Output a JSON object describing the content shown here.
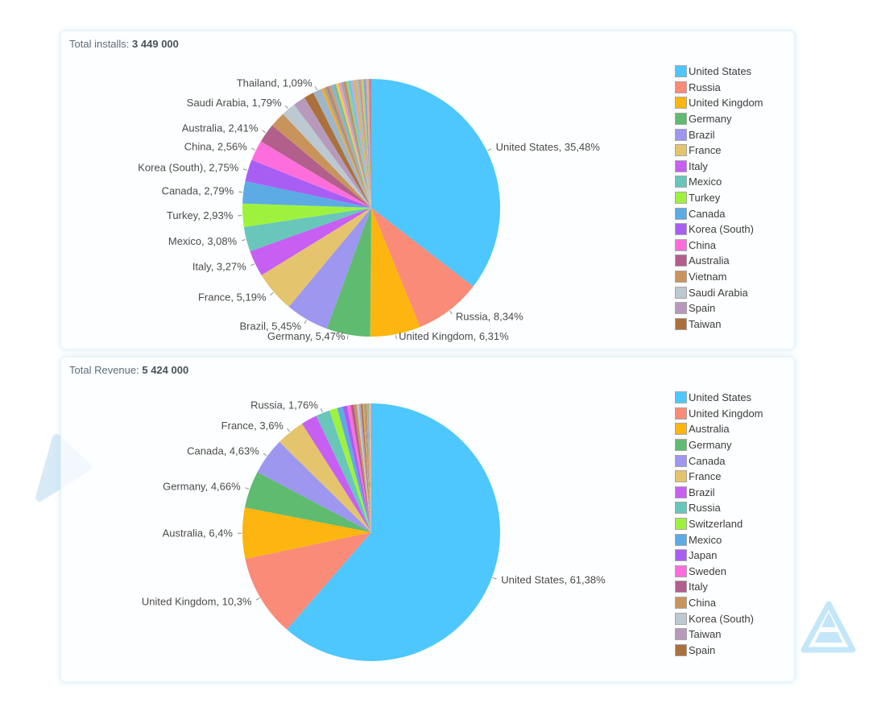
{
  "page": {
    "background": "#ffffff",
    "accent_decor_color": "#d7eaf6"
  },
  "cards": [
    {
      "title_label": "Total installs:",
      "total": "3 449 000"
    },
    {
      "title_label": "Total Revenue:",
      "total": "5 424 000"
    }
  ],
  "filler_palette": [
    "#F2A93B",
    "#ABA773",
    "#B2808F",
    "#C5A06A",
    "#7FB7DC",
    "#84B78A",
    "#E8D25A",
    "#F09AC0",
    "#9AA7B5",
    "#C98B4F",
    "#8FCF9B",
    "#6FC6D8",
    "#C8A6E0",
    "#D9B84A",
    "#A8BCCB",
    "#E09080",
    "#A5D878",
    "#90A0DC",
    "#EBB083",
    "#AB8FA8"
  ],
  "label_text_color": "#4a4a4a",
  "tick_color": "#8f8f8f",
  "chart_data": [
    {
      "type": "pie",
      "title": "Total installs: 3 449 000",
      "total_label": "Total installs:",
      "total_value": "3 449 000",
      "unit": "percent",
      "legend_position": "right",
      "slices": [
        {
          "name": "United States",
          "value": 35.48,
          "color": "#4DC7FD",
          "label": "United States, 35,48%"
        },
        {
          "name": "Russia",
          "value": 8.34,
          "color": "#FA8B78",
          "label": "Russia, 8,34%"
        },
        {
          "name": "United Kingdom",
          "value": 6.31,
          "color": "#FCB60F",
          "label": "United Kingdom, 6,31%"
        },
        {
          "name": "Germany",
          "value": 5.47,
          "color": "#5EBB70",
          "label": "Germany, 5,47%"
        },
        {
          "name": "Brazil",
          "value": 5.45,
          "color": "#9D97EF",
          "label": "Brazil, 5,45%"
        },
        {
          "name": "France",
          "value": 5.19,
          "color": "#E5C46E",
          "label": "France, 5,19%"
        },
        {
          "name": "Italy",
          "value": 3.27,
          "color": "#C75FF3",
          "label": "Italy, 3,27%"
        },
        {
          "name": "Mexico",
          "value": 3.08,
          "color": "#68C6BB",
          "label": "Mexico, 3,08%"
        },
        {
          "name": "Turkey",
          "value": 2.93,
          "color": "#9EF23E",
          "label": "Turkey, 2,93%"
        },
        {
          "name": "Canada",
          "value": 2.79,
          "color": "#5CABE5",
          "label": "Canada, 2,79%"
        },
        {
          "name": "Korea (South)",
          "value": 2.75,
          "color": "#A95EF3",
          "label": "Korea (South), 2,75%"
        },
        {
          "name": "China",
          "value": 2.56,
          "color": "#FD6EDC",
          "label": "China, 2,56%"
        },
        {
          "name": "Australia",
          "value": 2.41,
          "color": "#B2608B",
          "label": "Australia, 2,41%"
        },
        {
          "name": "Vietnam",
          "value": 1.95,
          "color": "#C9945C",
          "label": null
        },
        {
          "name": "Saudi Arabia",
          "value": 1.79,
          "color": "#BCC9D1",
          "label": "Saudi Arabia, 1,79%"
        },
        {
          "name": "Spain",
          "value": 1.55,
          "color": "#B79ABB",
          "label": null
        },
        {
          "name": "Taiwan",
          "value": 1.25,
          "color": "#AA713C",
          "label": null
        },
        {
          "name": "Thailand",
          "value": 1.09,
          "color": "#9FB5C8",
          "label": "Thailand, 1,09%"
        }
      ],
      "others": {
        "count": 20,
        "total_pct": 6.34
      },
      "legend": [
        "United States",
        "Russia",
        "United Kingdom",
        "Germany",
        "Brazil",
        "France",
        "Italy",
        "Mexico",
        "Turkey",
        "Canada",
        "Korea (South)",
        "China",
        "Australia",
        "Vietnam",
        "Saudi Arabia",
        "Spain",
        "Taiwan"
      ]
    },
    {
      "type": "pie",
      "title": "Total Revenue: 5 424 000",
      "total_label": "Total Revenue:",
      "total_value": "5 424 000",
      "unit": "percent",
      "legend_position": "right",
      "slices": [
        {
          "name": "United States",
          "value": 61.38,
          "color": "#4DC7FD",
          "label": "United States, 61,38%"
        },
        {
          "name": "United Kingdom",
          "value": 10.3,
          "color": "#FA8B78",
          "label": "United Kingdom, 10,3%"
        },
        {
          "name": "Australia",
          "value": 6.4,
          "color": "#FCB60F",
          "label": "Australia, 6,4%"
        },
        {
          "name": "Germany",
          "value": 4.66,
          "color": "#5EBB70",
          "label": "Germany, 4,66%"
        },
        {
          "name": "Canada",
          "value": 4.63,
          "color": "#9D97EF",
          "label": "Canada, 4,63%"
        },
        {
          "name": "France",
          "value": 3.6,
          "color": "#E5C46E",
          "label": "France, 3,6%"
        },
        {
          "name": "Brazil",
          "value": 2.0,
          "color": "#C75FF3",
          "label": null
        },
        {
          "name": "Russia",
          "value": 1.76,
          "color": "#68C6BB",
          "label": "Russia, 1,76%"
        },
        {
          "name": "Switzerland",
          "value": 1.0,
          "color": "#9EF23E",
          "label": null
        },
        {
          "name": "Mexico",
          "value": 0.7,
          "color": "#5CABE5",
          "label": null
        },
        {
          "name": "Japan",
          "value": 0.55,
          "color": "#A95EF3",
          "label": null
        },
        {
          "name": "Sweden",
          "value": 0.45,
          "color": "#FD6EDC",
          "label": null
        },
        {
          "name": "Italy",
          "value": 0.4,
          "color": "#B2608B",
          "label": null
        },
        {
          "name": "China",
          "value": 0.35,
          "color": "#C9945C",
          "label": null
        },
        {
          "name": "Korea (South)",
          "value": 0.3,
          "color": "#BCC9D1",
          "label": null
        },
        {
          "name": "Taiwan",
          "value": 0.25,
          "color": "#B79ABB",
          "label": null
        },
        {
          "name": "Spain",
          "value": 0.2,
          "color": "#AA713C",
          "label": null
        }
      ],
      "others": {
        "count": 8,
        "total_pct": 1.07
      },
      "legend": [
        "United States",
        "United Kingdom",
        "Australia",
        "Germany",
        "Canada",
        "France",
        "Brazil",
        "Russia",
        "Switzerland",
        "Mexico",
        "Japan",
        "Sweden",
        "Italy",
        "China",
        "Korea (South)",
        "Taiwan",
        "Spain"
      ]
    }
  ]
}
